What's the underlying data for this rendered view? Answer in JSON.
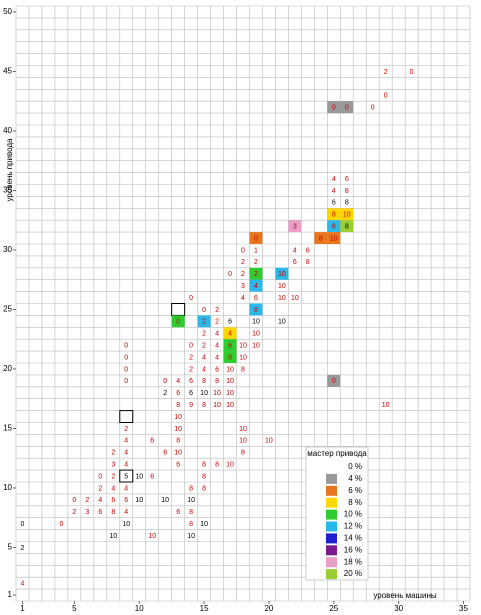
{
  "chart_data": {
    "type": "cell-grid",
    "y_label": "уровень привода",
    "x_label": "уровень машины",
    "xlim": [
      0.5,
      35.5
    ],
    "ylim": [
      0.5,
      50.5
    ],
    "xticks": [
      1,
      5,
      10,
      15,
      20,
      25,
      30,
      35
    ],
    "yticks": [
      1,
      5,
      10,
      15,
      20,
      25,
      30,
      35,
      40,
      45,
      50
    ],
    "grid": true,
    "text_color": "#cc0000",
    "legend": {
      "title": "мастер привода",
      "items": [
        {
          "label": "0 %",
          "color": null
        },
        {
          "label": "4 %",
          "color": "#999999"
        },
        {
          "label": "6 %",
          "color": "#e8761e"
        },
        {
          "label": "8 %",
          "color": "#ffd700"
        },
        {
          "label": "10 %",
          "color": "#2ecc2e"
        },
        {
          "label": "12 %",
          "color": "#29b8ea"
        },
        {
          "label": "14 %",
          "color": "#1f1fd0"
        },
        {
          "label": "16 %",
          "color": "#7a1a8e"
        },
        {
          "label": "18 %",
          "color": "#e8a0c8"
        },
        {
          "label": "20 %",
          "color": "#9acd32"
        }
      ]
    },
    "cells": [
      {
        "x": 29,
        "y": 45,
        "value": 2
      },
      {
        "x": 31,
        "y": 45,
        "value": 0
      },
      {
        "x": 29,
        "y": 43,
        "value": 0
      },
      {
        "x": 25,
        "y": 42,
        "value": 0,
        "bg": "#999999"
      },
      {
        "x": 26,
        "y": 42,
        "value": 0,
        "bg": "#999999"
      },
      {
        "x": 28,
        "y": 42,
        "value": 0
      },
      {
        "x": 25,
        "y": 36,
        "value": 4
      },
      {
        "x": 26,
        "y": 36,
        "value": 6
      },
      {
        "x": 25,
        "y": 35,
        "value": 4
      },
      {
        "x": 26,
        "y": 35,
        "value": 8
      },
      {
        "x": 25,
        "y": 34,
        "value": 6,
        "black": true
      },
      {
        "x": 26,
        "y": 34,
        "value": 8,
        "black": true
      },
      {
        "x": 25,
        "y": 33,
        "value": 8,
        "bg": "#ffd700"
      },
      {
        "x": 26,
        "y": 33,
        "value": 10,
        "bg": "#ffd700"
      },
      {
        "x": 22,
        "y": 32,
        "value": 3,
        "bg": "#e8a0c8"
      },
      {
        "x": 25,
        "y": 32,
        "value": 8,
        "bg": "#29b8ea"
      },
      {
        "x": 26,
        "y": 32,
        "value": 8,
        "bg": "#9acd32",
        "black": true
      },
      {
        "x": 19,
        "y": 31,
        "value": 0,
        "bg": "#e8761e"
      },
      {
        "x": 24,
        "y": 31,
        "value": 8,
        "bg": "#e8761e"
      },
      {
        "x": 25,
        "y": 31,
        "value": 10,
        "bg": "#e8761e"
      },
      {
        "x": 18,
        "y": 30,
        "value": 0
      },
      {
        "x": 19,
        "y": 30,
        "value": 1
      },
      {
        "x": 22,
        "y": 30,
        "value": 4
      },
      {
        "x": 23,
        "y": 30,
        "value": 6
      },
      {
        "x": 18,
        "y": 29,
        "value": 2
      },
      {
        "x": 19,
        "y": 29,
        "value": 2
      },
      {
        "x": 22,
        "y": 29,
        "value": 6
      },
      {
        "x": 23,
        "y": 29,
        "value": 8
      },
      {
        "x": 17,
        "y": 28,
        "value": 0
      },
      {
        "x": 18,
        "y": 28,
        "value": 2
      },
      {
        "x": 19,
        "y": 28,
        "value": 2,
        "bg": "#2ecc2e"
      },
      {
        "x": 21,
        "y": 28,
        "value": 10,
        "bg": "#29b8ea"
      },
      {
        "x": 18,
        "y": 27,
        "value": 3
      },
      {
        "x": 19,
        "y": 27,
        "value": 4,
        "bg": "#29b8ea"
      },
      {
        "x": 21,
        "y": 27,
        "value": 10
      },
      {
        "x": 14,
        "y": 26,
        "value": 0
      },
      {
        "x": 18,
        "y": 26,
        "value": 4
      },
      {
        "x": 19,
        "y": 26,
        "value": 6
      },
      {
        "x": 21,
        "y": 26,
        "value": 10
      },
      {
        "x": 22,
        "y": 26,
        "value": 10
      },
      {
        "x": 13,
        "y": 25,
        "value": null,
        "outlined": true
      },
      {
        "x": 15,
        "y": 25,
        "value": 0
      },
      {
        "x": 16,
        "y": 25,
        "value": 2
      },
      {
        "x": 19,
        "y": 25,
        "value": 8,
        "bg": "#29b8ea"
      },
      {
        "x": 13,
        "y": 24,
        "value": 0,
        "bg": "#2ecc2e"
      },
      {
        "x": 15,
        "y": 24,
        "value": 2,
        "bg": "#29b8ea"
      },
      {
        "x": 16,
        "y": 24,
        "value": 2
      },
      {
        "x": 17,
        "y": 24,
        "value": 6,
        "black": true
      },
      {
        "x": 19,
        "y": 24,
        "value": 10,
        "black": true
      },
      {
        "x": 21,
        "y": 24,
        "value": 10,
        "black": true
      },
      {
        "x": 15,
        "y": 23,
        "value": 2
      },
      {
        "x": 16,
        "y": 23,
        "value": 4
      },
      {
        "x": 17,
        "y": 23,
        "value": 4,
        "bg": "#ffd700"
      },
      {
        "x": 19,
        "y": 23,
        "value": 10
      },
      {
        "x": 9,
        "y": 22,
        "value": 0
      },
      {
        "x": 14,
        "y": 22,
        "value": 0
      },
      {
        "x": 15,
        "y": 22,
        "value": 2
      },
      {
        "x": 16,
        "y": 22,
        "value": 4
      },
      {
        "x": 17,
        "y": 22,
        "value": 6,
        "bg": "#2ecc2e"
      },
      {
        "x": 18,
        "y": 22,
        "value": 10
      },
      {
        "x": 19,
        "y": 22,
        "value": 10
      },
      {
        "x": 9,
        "y": 21,
        "value": 0
      },
      {
        "x": 14,
        "y": 21,
        "value": 2
      },
      {
        "x": 15,
        "y": 21,
        "value": 4
      },
      {
        "x": 16,
        "y": 21,
        "value": 4
      },
      {
        "x": 17,
        "y": 21,
        "value": 8,
        "bg": "#2ecc2e"
      },
      {
        "x": 18,
        "y": 21,
        "value": 10
      },
      {
        "x": 9,
        "y": 20,
        "value": 0
      },
      {
        "x": 14,
        "y": 20,
        "value": 2
      },
      {
        "x": 15,
        "y": 20,
        "value": 4
      },
      {
        "x": 16,
        "y": 20,
        "value": 6
      },
      {
        "x": 17,
        "y": 20,
        "value": 10
      },
      {
        "x": 18,
        "y": 20,
        "value": 8
      },
      {
        "x": 9,
        "y": 19,
        "value": 0
      },
      {
        "x": 12,
        "y": 19,
        "value": 0
      },
      {
        "x": 13,
        "y": 19,
        "value": 4
      },
      {
        "x": 14,
        "y": 19,
        "value": 6
      },
      {
        "x": 15,
        "y": 19,
        "value": 8
      },
      {
        "x": 16,
        "y": 19,
        "value": 8
      },
      {
        "x": 17,
        "y": 19,
        "value": 10
      },
      {
        "x": 25,
        "y": 19,
        "value": 0,
        "bg": "#999999"
      },
      {
        "x": 12,
        "y": 18,
        "value": 2,
        "black": true
      },
      {
        "x": 13,
        "y": 18,
        "value": 6
      },
      {
        "x": 14,
        "y": 18,
        "value": 6,
        "black": true
      },
      {
        "x": 15,
        "y": 18,
        "value": 10,
        "black": true
      },
      {
        "x": 16,
        "y": 18,
        "value": 10
      },
      {
        "x": 17,
        "y": 18,
        "value": 10
      },
      {
        "x": 13,
        "y": 17,
        "value": 8
      },
      {
        "x": 14,
        "y": 17,
        "value": 9
      },
      {
        "x": 15,
        "y": 17,
        "value": 8
      },
      {
        "x": 16,
        "y": 17,
        "value": 10
      },
      {
        "x": 17,
        "y": 17,
        "value": 10
      },
      {
        "x": 29,
        "y": 17,
        "value": 10
      },
      {
        "x": 9,
        "y": 16,
        "value": null,
        "outlined": true
      },
      {
        "x": 13,
        "y": 16,
        "value": 10
      },
      {
        "x": 9,
        "y": 15,
        "value": 2
      },
      {
        "x": 13,
        "y": 15,
        "value": 10
      },
      {
        "x": 18,
        "y": 15,
        "value": 10
      },
      {
        "x": 9,
        "y": 14,
        "value": 4
      },
      {
        "x": 11,
        "y": 14,
        "value": 6
      },
      {
        "x": 13,
        "y": 14,
        "value": 8
      },
      {
        "x": 18,
        "y": 14,
        "value": 10
      },
      {
        "x": 20,
        "y": 14,
        "value": 10
      },
      {
        "x": 8,
        "y": 13,
        "value": 2
      },
      {
        "x": 9,
        "y": 13,
        "value": 4
      },
      {
        "x": 12,
        "y": 13,
        "value": 6
      },
      {
        "x": 13,
        "y": 13,
        "value": 10
      },
      {
        "x": 18,
        "y": 13,
        "value": 8
      },
      {
        "x": 8,
        "y": 12,
        "value": 3
      },
      {
        "x": 9,
        "y": 12,
        "value": 4
      },
      {
        "x": 13,
        "y": 12,
        "value": 6
      },
      {
        "x": 15,
        "y": 12,
        "value": 8
      },
      {
        "x": 16,
        "y": 12,
        "value": 8
      },
      {
        "x": 17,
        "y": 12,
        "value": 10
      },
      {
        "x": 7,
        "y": 11,
        "value": 0
      },
      {
        "x": 8,
        "y": 11,
        "value": 2
      },
      {
        "x": 9,
        "y": 11,
        "value": 5,
        "outlined": true,
        "black": true
      },
      {
        "x": 10,
        "y": 11,
        "value": 10,
        "black": true
      },
      {
        "x": 11,
        "y": 11,
        "value": 6
      },
      {
        "x": 15,
        "y": 11,
        "value": 8
      },
      {
        "x": 7,
        "y": 10,
        "value": 2
      },
      {
        "x": 8,
        "y": 10,
        "value": 4
      },
      {
        "x": 9,
        "y": 10,
        "value": 4
      },
      {
        "x": 14,
        "y": 10,
        "value": 8
      },
      {
        "x": 15,
        "y": 10,
        "value": 8
      },
      {
        "x": 5,
        "y": 9,
        "value": 0
      },
      {
        "x": 6,
        "y": 9,
        "value": 2
      },
      {
        "x": 7,
        "y": 9,
        "value": 4
      },
      {
        "x": 8,
        "y": 9,
        "value": 6
      },
      {
        "x": 9,
        "y": 9,
        "value": 6
      },
      {
        "x": 10,
        "y": 9,
        "value": 10,
        "black": true
      },
      {
        "x": 12,
        "y": 9,
        "value": 10,
        "black": true
      },
      {
        "x": 14,
        "y": 9,
        "value": 10,
        "black": true
      },
      {
        "x": 5,
        "y": 8,
        "value": 2
      },
      {
        "x": 6,
        "y": 8,
        "value": 3
      },
      {
        "x": 7,
        "y": 8,
        "value": 6
      },
      {
        "x": 8,
        "y": 8,
        "value": 8
      },
      {
        "x": 9,
        "y": 8,
        "value": 4
      },
      {
        "x": 13,
        "y": 8,
        "value": 6
      },
      {
        "x": 14,
        "y": 8,
        "value": 8
      },
      {
        "x": 1,
        "y": 7,
        "value": 0,
        "black": true
      },
      {
        "x": 4,
        "y": 7,
        "value": 0
      },
      {
        "x": 9,
        "y": 7,
        "value": 10,
        "black": true
      },
      {
        "x": 14,
        "y": 7,
        "value": 8
      },
      {
        "x": 15,
        "y": 7,
        "value": 10,
        "black": true
      },
      {
        "x": 8,
        "y": 6,
        "value": 10,
        "black": true
      },
      {
        "x": 11,
        "y": 6,
        "value": 10
      },
      {
        "x": 14,
        "y": 6,
        "value": 10,
        "black": true
      },
      {
        "x": 1,
        "y": 5,
        "value": 2,
        "black": true
      },
      {
        "x": 1,
        "y": 2,
        "value": 4
      }
    ]
  }
}
